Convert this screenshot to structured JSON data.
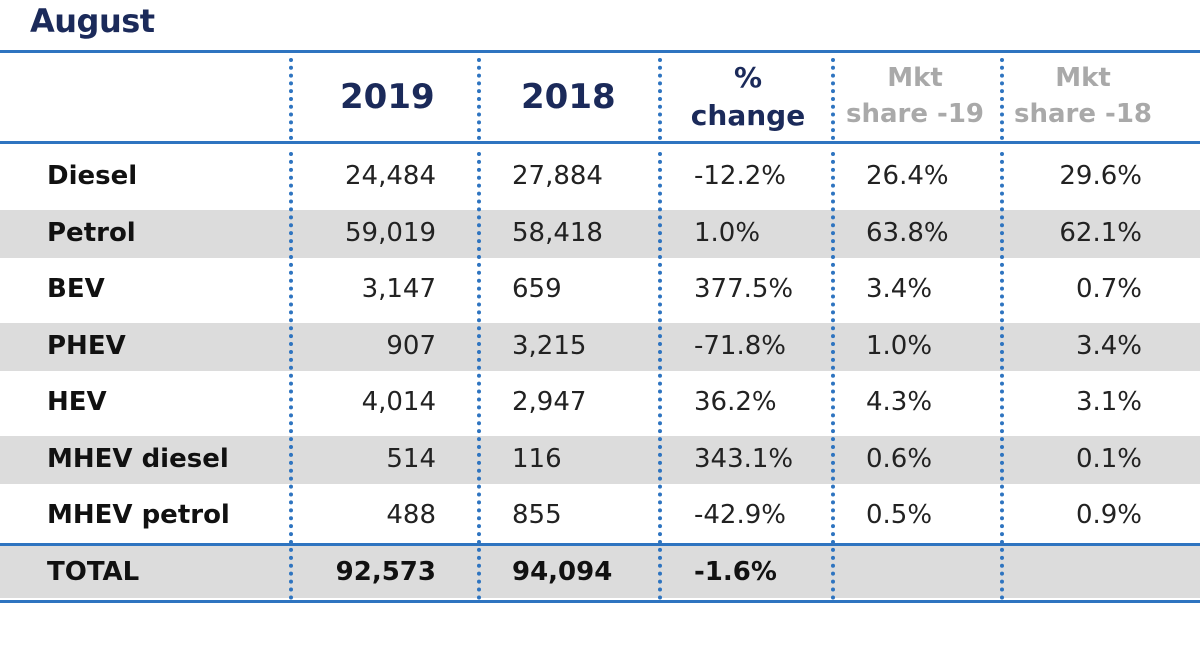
{
  "title": "August",
  "chart_data": {
    "type": "table",
    "title": "August",
    "columns": [
      "",
      "2019",
      "2018",
      "% change",
      "Mkt share -19",
      "Mkt share -18"
    ],
    "header": {
      "c2019": "2019",
      "c2018": "2018",
      "pct_line1": "%",
      "pct_line2": "change",
      "mkt19_line1": "Mkt",
      "mkt19_line2": "share -19",
      "mkt18_line1": "Mkt",
      "mkt18_line2": "share -18"
    },
    "rows": [
      {
        "label": "Diesel",
        "v2019": "24,484",
        "v2018": "27,884",
        "change": "-12.2%",
        "share19": "26.4%",
        "share18": "29.6%"
      },
      {
        "label": "Petrol",
        "v2019": "59,019",
        "v2018": "58,418",
        "change": "1.0%",
        "share19": "63.8%",
        "share18": "62.1%"
      },
      {
        "label": "BEV",
        "v2019": "3,147",
        "v2018": "659",
        "change": "377.5%",
        "share19": "3.4%",
        "share18": "0.7%"
      },
      {
        "label": "PHEV",
        "v2019": "907",
        "v2018": "3,215",
        "change": "-71.8%",
        "share19": "1.0%",
        "share18": "3.4%"
      },
      {
        "label": "HEV",
        "v2019": "4,014",
        "v2018": "2,947",
        "change": "36.2%",
        "share19": "4.3%",
        "share18": "3.1%"
      },
      {
        "label": "MHEV diesel",
        "v2019": "514",
        "v2018": "116",
        "change": "343.1%",
        "share19": "0.6%",
        "share18": "0.1%"
      },
      {
        "label": "MHEV petrol",
        "v2019": "488",
        "v2018": "855",
        "change": "-42.9%",
        "share19": "0.5%",
        "share18": "0.9%"
      }
    ],
    "total": {
      "label": "TOTAL",
      "v2019": "92,573",
      "v2018": "94,094",
      "change": "-1.6%",
      "share19": "",
      "share18": ""
    },
    "colors": {
      "rule": "#2e74c0",
      "title": "#1b2a5a",
      "stripe": "#dcdcdc",
      "mkt_header": "#a9a9a9"
    }
  }
}
